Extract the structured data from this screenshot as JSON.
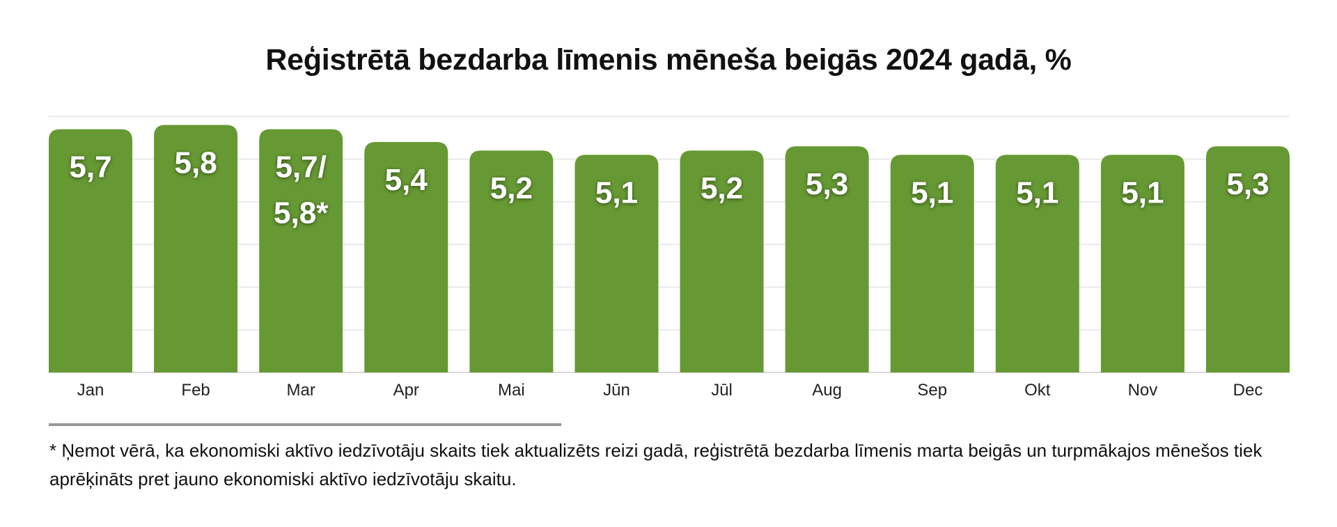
{
  "chart_data": {
    "type": "bar",
    "title": "Reģistrētā bezdarba līmenis mēneša beigās 2024 gadā, %",
    "xlabel": "",
    "ylabel": "",
    "categories": [
      "Jan",
      "Feb",
      "Mar",
      "Apr",
      "Mai",
      "Jūn",
      "Jūl",
      "Aug",
      "Sep",
      "Okt",
      "Nov",
      "Dec"
    ],
    "values": [
      5.7,
      5.8,
      5.7,
      5.4,
      5.2,
      5.1,
      5.2,
      5.3,
      5.1,
      5.1,
      5.1,
      5.3
    ],
    "data_labels": [
      [
        "5,7"
      ],
      [
        "5,8"
      ],
      [
        "5,7/",
        "5,8*"
      ],
      [
        "5,4"
      ],
      [
        "5,2"
      ],
      [
        "5,1"
      ],
      [
        "5,2"
      ],
      [
        "5,3"
      ],
      [
        "5,1"
      ],
      [
        "5,1"
      ],
      [
        "5,1"
      ],
      [
        "5,3"
      ]
    ],
    "ylim": [
      0,
      6
    ],
    "grid": true,
    "bar_color": "#669933",
    "label_color": "#ffffff",
    "grid_color": "#e4e4e4"
  },
  "footnote": "* Ņemot vērā, ka ekonomiski aktīvo iedzīvotāju skaits tiek aktualizēts reizi gadā, reģistrētā bezdarba līmenis marta beigās un turpmākajos mēnešos tiek aprēķināts pret jauno ekonomiski aktīvo iedzīvotāju skaitu."
}
